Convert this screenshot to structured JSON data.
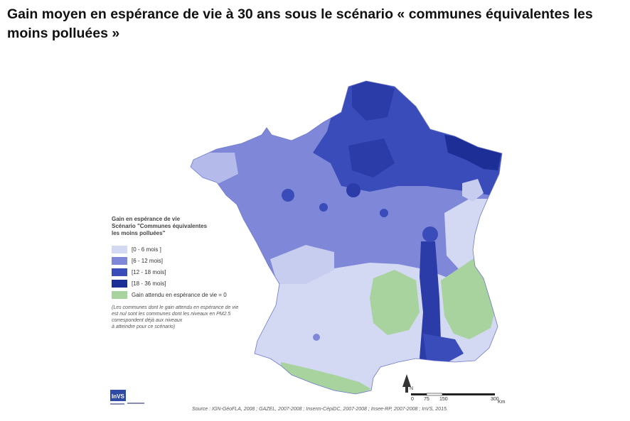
{
  "title": "Gain moyen en espérance de vie à 30 ans sous le scénario « communes équivalentes les moins polluées »",
  "legend": {
    "title": [
      "Gain en espérance de vie",
      "Scénario \"Communes équivalentes",
      "les moins polluées\""
    ],
    "items": [
      {
        "label": "[0 - 6 mois ]",
        "color": "#d3d8f3"
      },
      {
        "label": "[6 - 12 mois]",
        "color": "#7f88d8"
      },
      {
        "label": "[12 - 18 mois]",
        "color": "#3a4cba"
      },
      {
        "label": "[18 - 36 mois]",
        "color": "#1d2f96"
      },
      {
        "label": "Gain attendu en espérance de vie = 0",
        "color": "#a8d39e"
      }
    ],
    "note": [
      "(Les communes dont le gain attendu en espérance de vie",
      "est nul sont les communes dont les niveaux en PM2.5",
      "correspondent déjà aux niveaux",
      "à atteindre pour ce scénario)"
    ]
  },
  "scale": {
    "ticks": [
      "0",
      "75",
      "150",
      "300"
    ],
    "unit": "Km",
    "north": "N"
  },
  "source": "Source : IGN-GéoFLA, 2008 ; GAZEL, 2007-2008 ; Inserm-CépiDC, 2007-2008 ; Insee-RP, 2007-2008 ; InVS, 2015.",
  "logo_text": "InVS"
}
